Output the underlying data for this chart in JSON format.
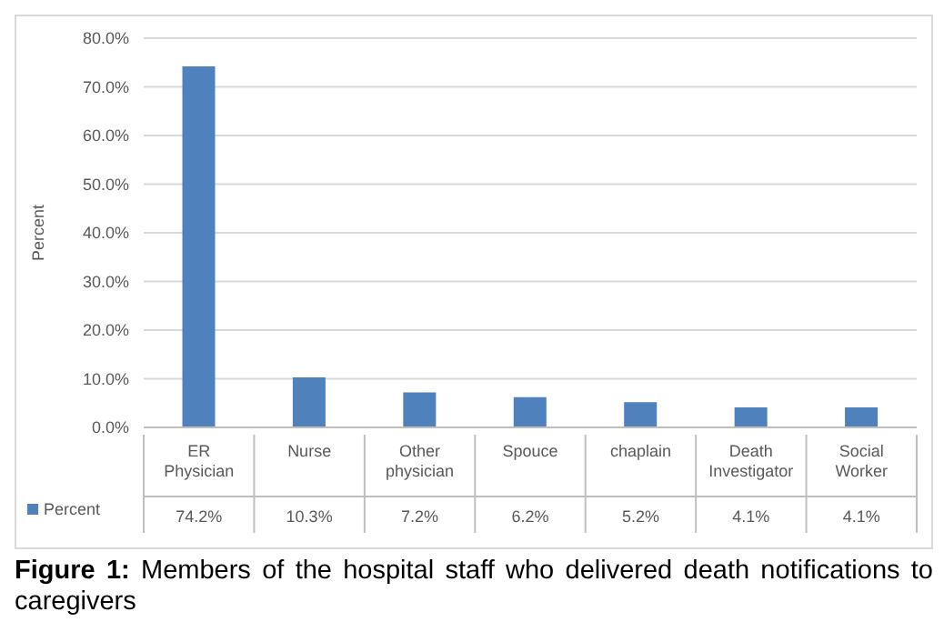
{
  "chart_data": {
    "type": "bar",
    "categories": [
      "ER Physician",
      "Nurse",
      "Other physician",
      "Spouce",
      "chaplain",
      "Death Investigator",
      "Social Worker"
    ],
    "series": [
      {
        "name": "Percent",
        "color": "#4f81bd",
        "values": [
          74.2,
          10.3,
          7.2,
          6.2,
          5.2,
          4.1,
          4.1
        ],
        "value_labels": [
          "74.2%",
          "10.3%",
          "7.2%",
          "6.2%",
          "5.2%",
          "4.1%",
          "4.1%"
        ]
      }
    ],
    "ylabel": "Percent",
    "ylim": [
      0,
      80
    ],
    "yticks": [
      {
        "value": 0,
        "label": "0.0%"
      },
      {
        "value": 10,
        "label": "10.0%"
      },
      {
        "value": 20,
        "label": "20.0%"
      },
      {
        "value": 30,
        "label": "30.0%"
      },
      {
        "value": 40,
        "label": "40.0%"
      },
      {
        "value": 50,
        "label": "50.0%"
      },
      {
        "value": 60,
        "label": "60.0%"
      },
      {
        "value": 70,
        "label": "70.0%"
      },
      {
        "value": 80,
        "label": "80.0%"
      }
    ],
    "grid": "y",
    "legend": "bottom left",
    "annotations": [
      "Figure 1: Members of the hospital staff who delivered death notifications to caregivers"
    ]
  }
}
